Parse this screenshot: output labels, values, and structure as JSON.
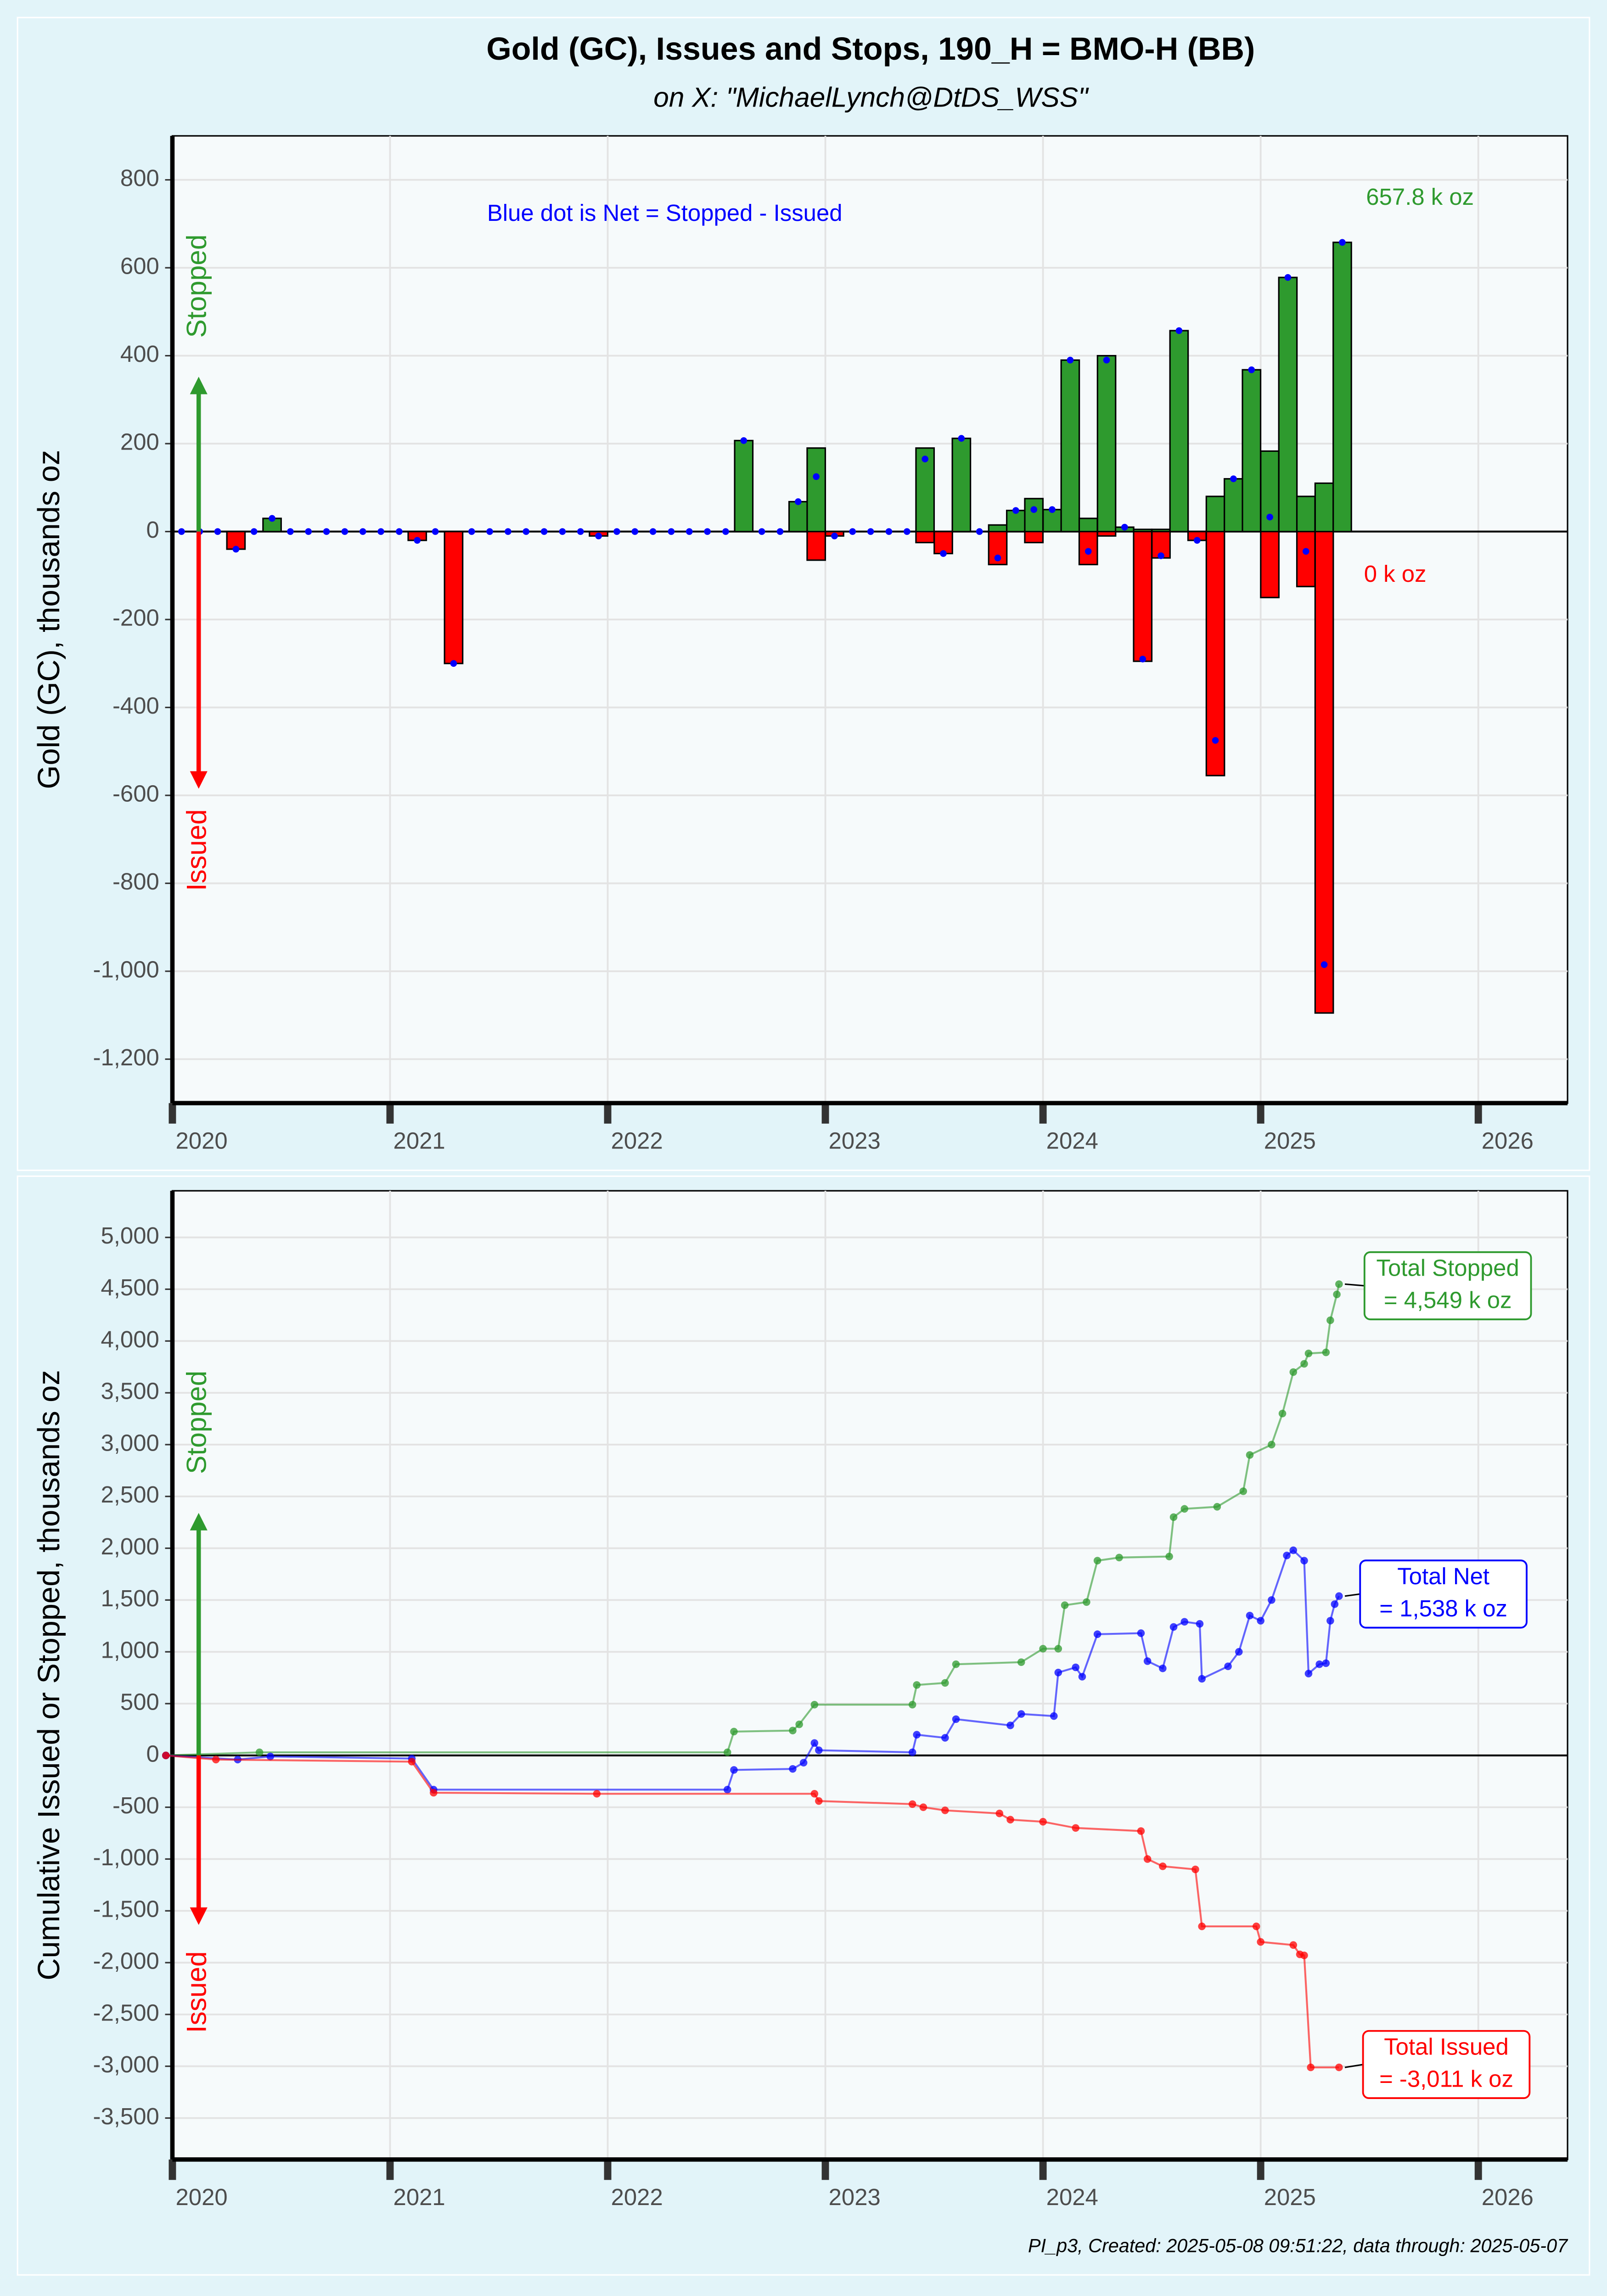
{
  "title": "Gold (GC), Issues and Stops, 190_H = BMO-H (BB)",
  "subtitle": "on X:   \"MichaelLynch@DtDS_WSS\"",
  "footer": "PI_p3, Created: 2025-05-08 09:51:22, data through: 2025-05-07",
  "chart_data": [
    {
      "type": "bar",
      "y_label": "Gold (GC), thousands oz",
      "note": "Blue dot is Net = Stopped - Issued",
      "last_stopped_label": "657.8 k oz",
      "last_issued_label": "0 k oz",
      "x": [
        2020.042,
        2020.125,
        2020.208,
        2020.292,
        2020.375,
        2020.458,
        2020.542,
        2020.625,
        2020.708,
        2020.792,
        2020.875,
        2020.958,
        2021.042,
        2021.125,
        2021.208,
        2021.292,
        2021.375,
        2021.458,
        2021.542,
        2021.625,
        2021.708,
        2021.792,
        2021.875,
        2021.958,
        2022.042,
        2022.125,
        2022.208,
        2022.292,
        2022.375,
        2022.458,
        2022.542,
        2022.625,
        2022.708,
        2022.792,
        2022.875,
        2022.958,
        2023.042,
        2023.125,
        2023.208,
        2023.292,
        2023.375,
        2023.458,
        2023.542,
        2023.625,
        2023.708,
        2023.792,
        2023.875,
        2023.958,
        2024.042,
        2024.125,
        2024.208,
        2024.292,
        2024.375,
        2024.458,
        2024.542,
        2024.625,
        2024.708,
        2024.792,
        2024.875,
        2024.958,
        2025.042,
        2025.125,
        2025.208,
        2025.292,
        2025.375
      ],
      "series": [
        {
          "name": "Stopped",
          "color": "#2e9a2e",
          "values": [
            0,
            0,
            0,
            0,
            0,
            30,
            0,
            0,
            0,
            0,
            0,
            0,
            0,
            0,
            0,
            0,
            0,
            0,
            0,
            0,
            0,
            0,
            0,
            0,
            0,
            0,
            0,
            0,
            0,
            0,
            0,
            207,
            0,
            0,
            68,
            190,
            0,
            0,
            0,
            0,
            0,
            190,
            0,
            212,
            0,
            15,
            48,
            75,
            50,
            390,
            30,
            400,
            10,
            5,
            5,
            457,
            0,
            80,
            120,
            368,
            183,
            578,
            80,
            110,
            657.8
          ]
        },
        {
          "name": "Issued",
          "color": "#ff0000",
          "values": [
            0,
            0,
            0,
            -40,
            0,
            0,
            0,
            0,
            0,
            0,
            0,
            0,
            0,
            -20,
            0,
            -300,
            0,
            0,
            0,
            0,
            0,
            0,
            0,
            -10,
            0,
            0,
            0,
            0,
            0,
            0,
            0,
            0,
            0,
            0,
            0,
            -65,
            -10,
            0,
            0,
            0,
            0,
            -25,
            -50,
            0,
            0,
            -75,
            0,
            -25,
            0,
            0,
            -75,
            -10,
            0,
            -295,
            -60,
            0,
            -20,
            -555,
            0,
            0,
            -150,
            0,
            -125,
            -1095,
            0
          ]
        },
        {
          "color": "#0000ff",
          "style": "dot",
          "values": [
            0,
            0,
            0,
            -40,
            0,
            30,
            0,
            0,
            0,
            0,
            0,
            0,
            0,
            -20,
            0,
            -300,
            0,
            0,
            0,
            0,
            0,
            0,
            0,
            -10,
            0,
            0,
            0,
            0,
            0,
            0,
            0,
            207,
            0,
            0,
            68,
            125,
            -10,
            0,
            0,
            0,
            0,
            165,
            -50,
            212,
            0,
            -60,
            48,
            50,
            50,
            390,
            -45,
            390,
            10,
            -290,
            -55,
            457,
            -20,
            -475,
            120,
            368,
            33,
            578,
            -45,
            -985,
            657.8
          ]
        }
      ],
      "xlim": [
        2020,
        2026.41
      ],
      "xticks": [
        2020,
        2021,
        2022,
        2023,
        2024,
        2025,
        2026
      ],
      "ylim": [
        -1300,
        900
      ],
      "yticks": [
        {
          "value": -1200,
          "label": "-1,200"
        },
        {
          "value": -1000,
          "label": "-1,000"
        },
        -800,
        -600,
        -400,
        -200,
        0,
        200,
        400,
        600,
        800
      ],
      "grid": true
    },
    {
      "type": "line",
      "y_label": "Cumulative Issued or Stopped, thousands oz",
      "up_label": "Stopped",
      "down_label": "Issued",
      "series": [
        {
          "name": "Total Stopped",
          "total_label": "= 4,549 k oz",
          "color": "#2e9a2e",
          "x": [
            2019.97,
            2020.4,
            2022.55,
            2022.58,
            2022.85,
            2022.88,
            2022.95,
            2023.4,
            2023.42,
            2023.55,
            2023.6,
            2023.9,
            2024.0,
            2024.07,
            2024.1,
            2024.2,
            2024.25,
            2024.35,
            2024.58,
            2024.6,
            2024.65,
            2024.8,
            2024.92,
            2024.95,
            2025.05,
            2025.1,
            2025.15,
            2025.2,
            2025.22,
            2025.3,
            2025.32,
            2025.35,
            2025.36
          ],
          "values": [
            0,
            30,
            30,
            230,
            240,
            300,
            490,
            490,
            680,
            700,
            880,
            900,
            1030,
            1030,
            1450,
            1480,
            1880,
            1910,
            1920,
            2300,
            2380,
            2400,
            2550,
            2900,
            3000,
            3300,
            3700,
            3780,
            3880,
            3890,
            4200,
            4450,
            4549
          ]
        },
        {
          "name": "Total Net",
          "total_label": "= 1,538 k oz",
          "color": "#0000ff",
          "x": [
            2019.97,
            2020.3,
            2020.45,
            2021.1,
            2021.2,
            2022.55,
            2022.58,
            2022.85,
            2022.9,
            2022.95,
            2022.97,
            2023.4,
            2023.42,
            2023.55,
            2023.6,
            2023.85,
            2023.9,
            2024.05,
            2024.07,
            2024.15,
            2024.18,
            2024.25,
            2024.45,
            2024.48,
            2024.55,
            2024.6,
            2024.65,
            2024.72,
            2024.73,
            2024.85,
            2024.9,
            2024.95,
            2025.0,
            2025.05,
            2025.12,
            2025.15,
            2025.2,
            2025.22,
            2025.27,
            2025.3,
            2025.32,
            2025.34,
            2025.36
          ],
          "values": [
            0,
            -40,
            -10,
            -30,
            -330,
            -330,
            -140,
            -130,
            -70,
            120,
            50,
            30,
            200,
            170,
            350,
            290,
            400,
            380,
            800,
            850,
            760,
            1170,
            1180,
            910,
            840,
            1240,
            1290,
            1270,
            740,
            860,
            1000,
            1350,
            1300,
            1500,
            1930,
            1980,
            1880,
            790,
            880,
            890,
            1300,
            1460,
            1538
          ]
        },
        {
          "name": "Total Issued",
          "total_label": "= -3,011 k oz",
          "color": "#ff0000",
          "x": [
            2019.97,
            2020.2,
            2021.1,
            2021.2,
            2021.95,
            2022.95,
            2022.97,
            2023.4,
            2023.45,
            2023.55,
            2023.8,
            2023.85,
            2024.0,
            2024.15,
            2024.45,
            2024.48,
            2024.55,
            2024.7,
            2024.73,
            2024.98,
            2025.0,
            2025.15,
            2025.18,
            2025.2,
            2025.23,
            2025.36
          ],
          "values": [
            0,
            -40,
            -60,
            -360,
            -370,
            -370,
            -440,
            -470,
            -500,
            -530,
            -560,
            -620,
            -640,
            -700,
            -730,
            -1000,
            -1070,
            -1100,
            -1650,
            -1650,
            -1800,
            -1830,
            -1920,
            -1930,
            -3011,
            -3011
          ]
        }
      ],
      "xlim": [
        2020,
        2026.41
      ],
      "xticks": [
        2020,
        2021,
        2022,
        2023,
        2024,
        2025,
        2026
      ],
      "ylim": [
        -3900,
        5450
      ],
      "yticks": [
        {
          "value": -3500,
          "label": "-3,500"
        },
        {
          "value": -3000,
          "label": "-3,000"
        },
        {
          "value": -2500,
          "label": "-2,500"
        },
        {
          "value": -2000,
          "label": "-2,000"
        },
        {
          "value": -1500,
          "label": "-1,500"
        },
        {
          "value": -1000,
          "label": "-1,000"
        },
        -500,
        0,
        500,
        {
          "value": 1000,
          "label": "1,000"
        },
        {
          "value": 1500,
          "label": "1,500"
        },
        {
          "value": 2000,
          "label": "2,000"
        },
        {
          "value": 2500,
          "label": "2,500"
        },
        {
          "value": 3000,
          "label": "3,000"
        },
        {
          "value": 3500,
          "label": "3,500"
        },
        {
          "value": 4000,
          "label": "4,000"
        },
        {
          "value": 4500,
          "label": "4,500"
        },
        {
          "value": 5000,
          "label": "5,000"
        }
      ],
      "grid": true
    }
  ]
}
